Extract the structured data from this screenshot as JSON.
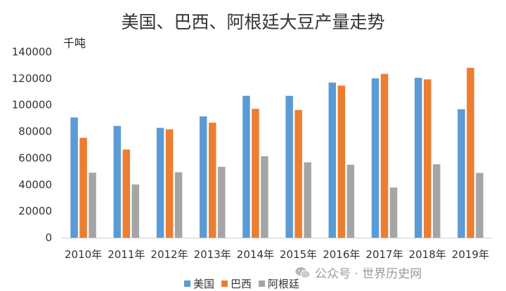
{
  "chart_data": {
    "type": "bar",
    "title": "美国、巴西、阿根廷大豆产量走势",
    "unit_label": "千吨",
    "categories": [
      "2010年",
      "2011年",
      "2012年",
      "2013年",
      "2014年",
      "2015年",
      "2016年",
      "2017年",
      "2018年",
      "2019年"
    ],
    "series": [
      {
        "name": "美国",
        "color": "#5b9bd5",
        "values": [
          90600,
          84200,
          82800,
          91400,
          106900,
          106900,
          116900,
          120100,
          120500,
          96800
        ]
      },
      {
        "name": "巴西",
        "color": "#ed7d31",
        "values": [
          75300,
          66400,
          81700,
          86700,
          97100,
          96200,
          114600,
          123400,
          119300,
          128000
        ]
      },
      {
        "name": "阿根廷",
        "color": "#a5a5a5",
        "values": [
          49000,
          40100,
          49300,
          53400,
          61400,
          56800,
          55000,
          37800,
          55300,
          48800
        ]
      }
    ],
    "yticks": [
      "0",
      "20000",
      "40000",
      "60000",
      "80000",
      "100000",
      "120000",
      "140000"
    ],
    "ylim": [
      0,
      140000
    ],
    "grid": false,
    "legend_position": "bottom"
  },
  "watermark": {
    "text": "公众号 · 世界历史网",
    "icon": "wechat-icon"
  }
}
